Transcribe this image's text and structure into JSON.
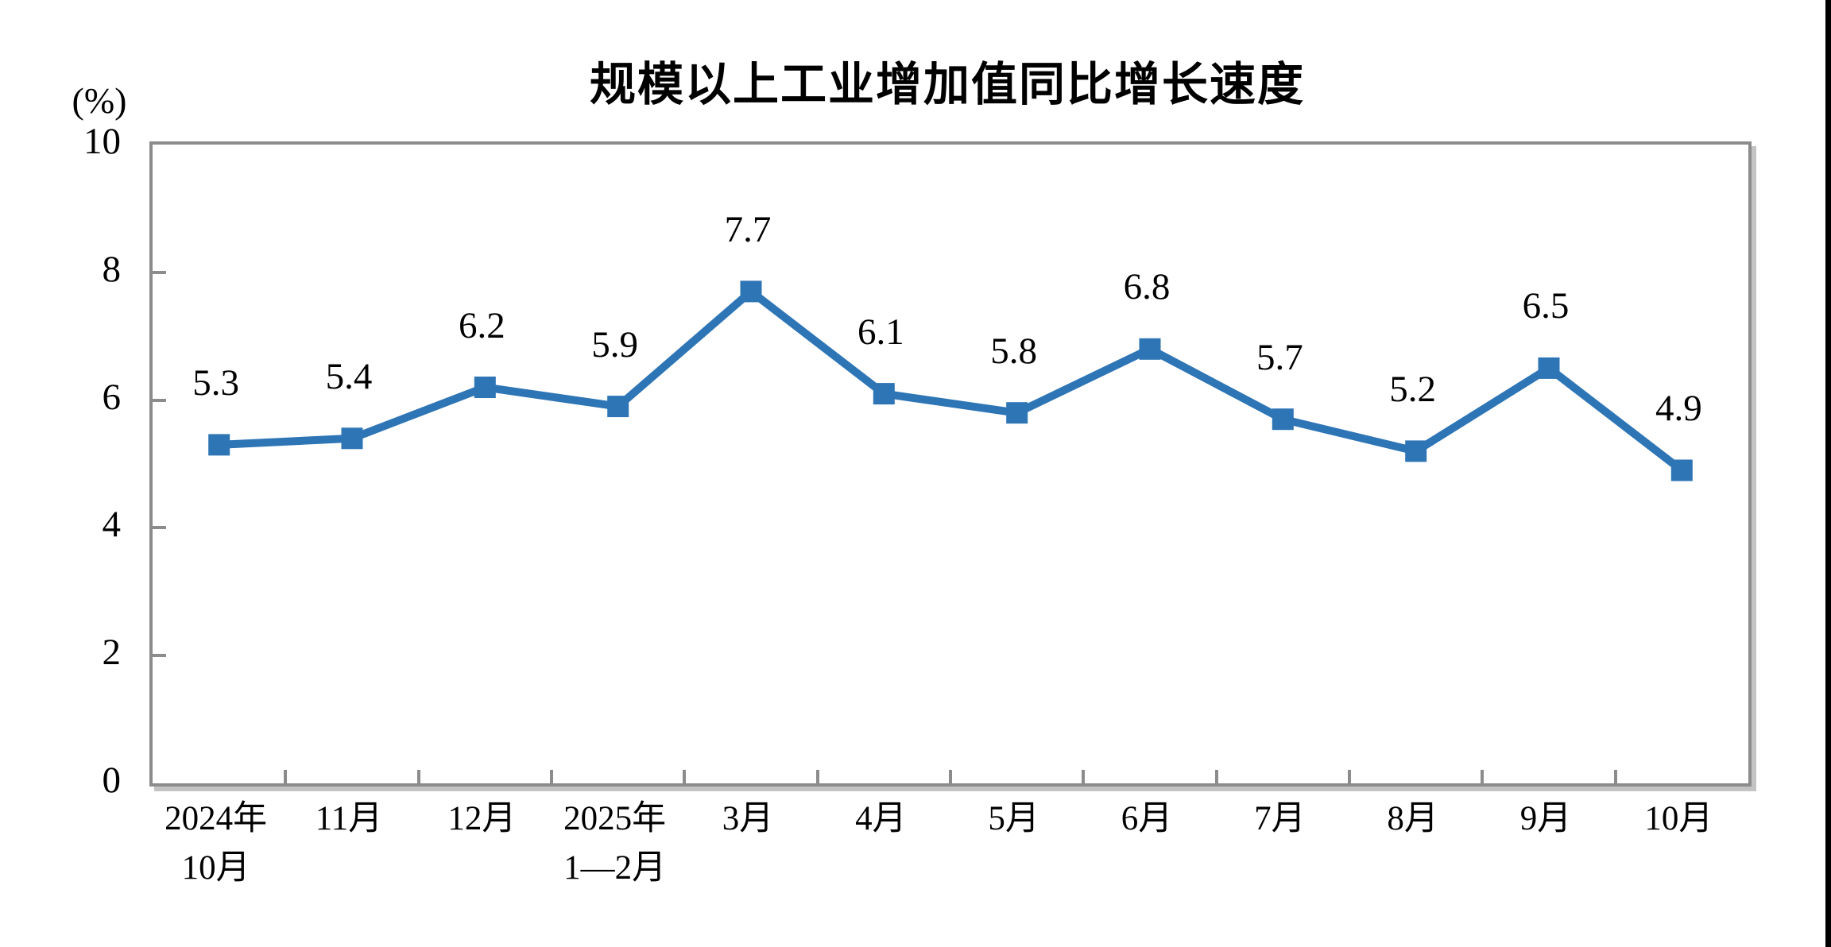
{
  "title": "规模以上工业增加值同比增长速度",
  "unit_label": "(%)",
  "colors": {
    "series_line": "#2e75b6",
    "axis": "#8c8c8c",
    "axis_shadow": "#c3c3c3",
    "text": "#000000",
    "right_edge_strip": "#000000"
  },
  "chart_data": {
    "type": "line",
    "title": "规模以上工业增加值同比增长速度",
    "ylabel": "(%)",
    "xlabel": "",
    "categories": [
      "2024年\n10月",
      "11月",
      "12月",
      "2025年\n1—2月",
      "3月",
      "4月",
      "5月",
      "6月",
      "7月",
      "8月",
      "9月",
      "10月"
    ],
    "values": [
      5.3,
      5.4,
      6.2,
      5.9,
      7.7,
      6.1,
      5.8,
      6.8,
      5.7,
      5.2,
      6.5,
      4.9
    ],
    "data_labels": [
      "5.3",
      "5.4",
      "6.2",
      "5.9",
      "7.7",
      "6.1",
      "5.8",
      "6.8",
      "5.7",
      "5.2",
      "6.5",
      "4.9"
    ],
    "ylim": [
      0,
      10
    ],
    "yticks": [
      0,
      2,
      4,
      6,
      8,
      10
    ],
    "grid": false,
    "legend_position": "none",
    "marker": "square"
  }
}
